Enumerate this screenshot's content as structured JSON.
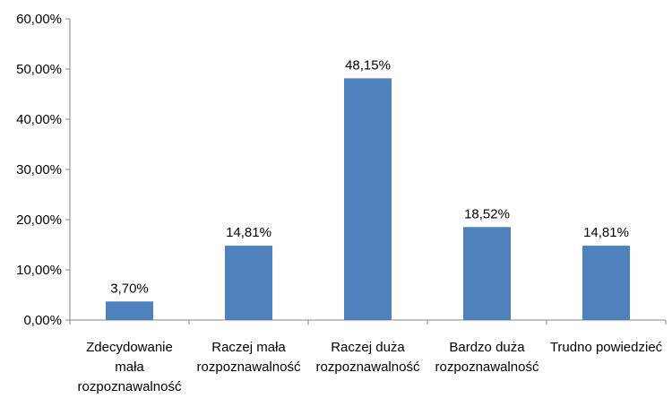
{
  "chart_data": {
    "type": "bar",
    "categories": [
      [
        "Zdecydowanie",
        "mała",
        "rozpoznawalność"
      ],
      [
        "Raczej mała",
        "rozpoznawalność"
      ],
      [
        "Raczej duża",
        "rozpoznawalność"
      ],
      [
        "Bardzo duża",
        "rozpoznawalność"
      ],
      [
        "Trudno powiedzieć"
      ]
    ],
    "values": [
      3.7,
      14.81,
      48.15,
      18.52,
      14.81
    ],
    "data_labels": [
      "3,70%",
      "14,81%",
      "48,15%",
      "18,52%",
      "14,81%"
    ],
    "ylim": [
      0,
      60
    ],
    "yticks": [
      0,
      10,
      20,
      30,
      40,
      50,
      60
    ],
    "ytick_labels": [
      "0,00%",
      "10,00%",
      "20,00%",
      "30,00%",
      "40,00%",
      "50,00%",
      "60,00%"
    ],
    "grid": false,
    "legend": "none",
    "colors": {
      "bar": "#4F81BD",
      "axis": "#868686"
    }
  }
}
